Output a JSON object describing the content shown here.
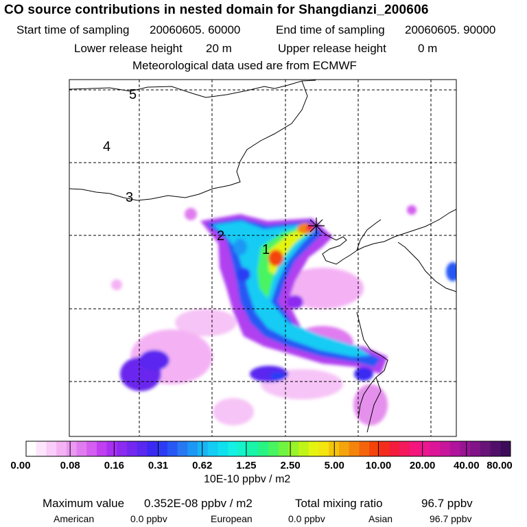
{
  "title": "CO  source contributions in nested domain for Shangdianzi_200606",
  "info": {
    "start_label": "Start time of sampling",
    "start_value": "20060605. 60000",
    "end_label": "End time of sampling",
    "end_value": "20060605. 90000",
    "lower_label": "Lower release height",
    "lower_value": "20 m",
    "upper_label": "Upper release height",
    "upper_value": "0 m",
    "met": "Meteorological data used are from ECMWF"
  },
  "map": {
    "day_markers": [
      "5",
      "4",
      "3",
      "2",
      "1"
    ],
    "receptor_symbol": "*"
  },
  "colorbar": {
    "tick_labels": [
      "0.00",
      "0.08",
      "0.16",
      "0.31",
      "0.62",
      "1.25",
      "2.50",
      "5.00",
      "10.00",
      "20.00",
      "40.00",
      "80.00"
    ],
    "units": "10E-10 ppbv / m2",
    "colors": [
      "#ffffff",
      "#fde6fd",
      "#f9ccf9",
      "#f4b2f4",
      "#eb98f2",
      "#e07cf0",
      "#d35ef0",
      "#c040f0",
      "#a830f2",
      "#8c2af0",
      "#7228ee",
      "#5a28f0",
      "#3a2af2",
      "#2c3cf4",
      "#2858f4",
      "#2878f4",
      "#1c98f4",
      "#18b4f4",
      "#14ccf4",
      "#10e0ee",
      "#14f0e4",
      "#14f4c8",
      "#18f4a8",
      "#28f484",
      "#48f460",
      "#70f440",
      "#98f428",
      "#c0f418",
      "#e4f410",
      "#f4e410",
      "#f4c40c",
      "#f4a40c",
      "#f4840c",
      "#f4640c",
      "#f4440c",
      "#f42c1c",
      "#f41c3c",
      "#f4185c",
      "#f4167c",
      "#ec1690",
      "#dc1698",
      "#c8169c",
      "#b0149c",
      "#981494",
      "#801488",
      "#681478",
      "#50106a",
      "#3c0c5a"
    ]
  },
  "stats": {
    "max_label": "Maximum value",
    "max_value": "0.352E-08 ppbv / m2",
    "total_label": "Total mixing ratio",
    "total_value": "96.7 ppbv",
    "american_label": "American",
    "american_value": "0.0 ppbv",
    "european_label": "European",
    "european_value": "0.0 ppbv",
    "asian_label": "Asian",
    "asian_value": "96.7 ppbv"
  }
}
